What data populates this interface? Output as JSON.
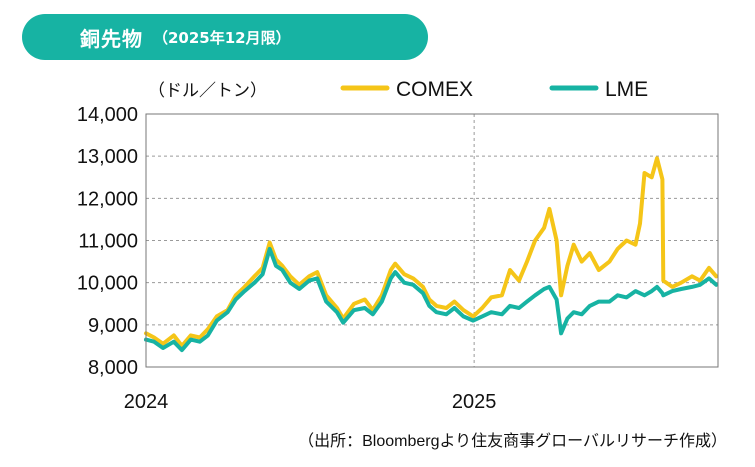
{
  "header": {
    "title": "銅先物",
    "subtitle": "（2025年12月限）"
  },
  "source_note": "（出所：Bloombergより住友商事グローバルリサーチ作成）",
  "colors": {
    "title_bg": "#17b3a3",
    "comex": "#f5c518",
    "lme": "#17b3a3",
    "grid": "#9a9a9a"
  },
  "chart_data": {
    "type": "line",
    "unit_label": "（ドル／トン）",
    "ylim": [
      8000,
      14000
    ],
    "yticks": [
      8000,
      9000,
      10000,
      11000,
      12000,
      13000,
      14000
    ],
    "ytick_labels": [
      "8,000",
      "9,000",
      "10,000",
      "11,000",
      "12,000",
      "13,000",
      "14,000"
    ],
    "xlim": [
      "2024-01-01",
      "2025-09-30"
    ],
    "xticks": [
      "2024-01-01",
      "2025-01-01"
    ],
    "xtick_labels": [
      "2024",
      "2025"
    ],
    "grid": "dashed",
    "legend_position": "top-right",
    "series": [
      {
        "name": "COMEX",
        "color": "#f5c518",
        "points": [
          [
            "2024-01-01",
            8800
          ],
          [
            "2024-01-10",
            8700
          ],
          [
            "2024-01-20",
            8550
          ],
          [
            "2024-02-01",
            8750
          ],
          [
            "2024-02-10",
            8500
          ],
          [
            "2024-02-20",
            8750
          ],
          [
            "2024-03-01",
            8700
          ],
          [
            "2024-03-10",
            8900
          ],
          [
            "2024-03-20",
            9200
          ],
          [
            "2024-04-01",
            9350
          ],
          [
            "2024-04-10",
            9700
          ],
          [
            "2024-04-20",
            9900
          ],
          [
            "2024-05-01",
            10150
          ],
          [
            "2024-05-10",
            10350
          ],
          [
            "2024-05-18",
            10950
          ],
          [
            "2024-05-25",
            10550
          ],
          [
            "2024-06-01",
            10400
          ],
          [
            "2024-06-10",
            10150
          ],
          [
            "2024-06-20",
            9950
          ],
          [
            "2024-07-01",
            10150
          ],
          [
            "2024-07-10",
            10250
          ],
          [
            "2024-07-20",
            9700
          ],
          [
            "2024-08-01",
            9400
          ],
          [
            "2024-08-08",
            9150
          ],
          [
            "2024-08-20",
            9500
          ],
          [
            "2024-09-01",
            9600
          ],
          [
            "2024-09-10",
            9350
          ],
          [
            "2024-09-20",
            9700
          ],
          [
            "2024-09-30",
            10300
          ],
          [
            "2024-10-05",
            10450
          ],
          [
            "2024-10-15",
            10200
          ],
          [
            "2024-10-25",
            10100
          ],
          [
            "2024-11-05",
            9900
          ],
          [
            "2024-11-12",
            9600
          ],
          [
            "2024-11-20",
            9450
          ],
          [
            "2024-12-01",
            9400
          ],
          [
            "2024-12-10",
            9550
          ],
          [
            "2024-12-20",
            9350
          ],
          [
            "2024-12-31",
            9200
          ],
          [
            "2025-01-10",
            9400
          ],
          [
            "2025-01-20",
            9650
          ],
          [
            "2025-02-01",
            9700
          ],
          [
            "2025-02-10",
            10300
          ],
          [
            "2025-02-20",
            10050
          ],
          [
            "2025-03-01",
            10500
          ],
          [
            "2025-03-10",
            11000
          ],
          [
            "2025-03-20",
            11300
          ],
          [
            "2025-03-26",
            11750
          ],
          [
            "2025-04-03",
            11000
          ],
          [
            "2025-04-08",
            9700
          ],
          [
            "2025-04-15",
            10400
          ],
          [
            "2025-04-22",
            10900
          ],
          [
            "2025-05-01",
            10500
          ],
          [
            "2025-05-10",
            10700
          ],
          [
            "2025-05-20",
            10300
          ],
          [
            "2025-06-01",
            10500
          ],
          [
            "2025-06-10",
            10800
          ],
          [
            "2025-06-20",
            11000
          ],
          [
            "2025-06-30",
            10900
          ],
          [
            "2025-07-05",
            11400
          ],
          [
            "2025-07-10",
            12600
          ],
          [
            "2025-07-18",
            12500
          ],
          [
            "2025-07-24",
            12950
          ],
          [
            "2025-07-30",
            12450
          ],
          [
            "2025-07-31",
            10050
          ],
          [
            "2025-08-10",
            9900
          ],
          [
            "2025-08-20",
            10000
          ],
          [
            "2025-09-01",
            10150
          ],
          [
            "2025-09-10",
            10050
          ],
          [
            "2025-09-20",
            10350
          ],
          [
            "2025-09-28",
            10150
          ]
        ]
      },
      {
        "name": "LME",
        "color": "#17b3a3",
        "points": [
          [
            "2024-01-01",
            8650
          ],
          [
            "2024-01-10",
            8600
          ],
          [
            "2024-01-20",
            8450
          ],
          [
            "2024-02-01",
            8600
          ],
          [
            "2024-02-10",
            8400
          ],
          [
            "2024-02-20",
            8650
          ],
          [
            "2024-03-01",
            8600
          ],
          [
            "2024-03-10",
            8750
          ],
          [
            "2024-03-20",
            9100
          ],
          [
            "2024-04-01",
            9300
          ],
          [
            "2024-04-10",
            9600
          ],
          [
            "2024-04-20",
            9800
          ],
          [
            "2024-05-01",
            10000
          ],
          [
            "2024-05-10",
            10200
          ],
          [
            "2024-05-18",
            10800
          ],
          [
            "2024-05-25",
            10400
          ],
          [
            "2024-06-01",
            10300
          ],
          [
            "2024-06-10",
            10000
          ],
          [
            "2024-06-20",
            9850
          ],
          [
            "2024-07-01",
            10050
          ],
          [
            "2024-07-10",
            10100
          ],
          [
            "2024-07-20",
            9550
          ],
          [
            "2024-08-01",
            9300
          ],
          [
            "2024-08-08",
            9050
          ],
          [
            "2024-08-20",
            9350
          ],
          [
            "2024-09-01",
            9400
          ],
          [
            "2024-09-10",
            9250
          ],
          [
            "2024-09-20",
            9550
          ],
          [
            "2024-09-30",
            10100
          ],
          [
            "2024-10-05",
            10250
          ],
          [
            "2024-10-15",
            10000
          ],
          [
            "2024-10-25",
            9950
          ],
          [
            "2024-11-05",
            9750
          ],
          [
            "2024-11-12",
            9450
          ],
          [
            "2024-11-20",
            9300
          ],
          [
            "2024-12-01",
            9250
          ],
          [
            "2024-12-10",
            9400
          ],
          [
            "2024-12-20",
            9200
          ],
          [
            "2024-12-31",
            9100
          ],
          [
            "2025-01-10",
            9200
          ],
          [
            "2025-01-20",
            9300
          ],
          [
            "2025-02-01",
            9250
          ],
          [
            "2025-02-10",
            9450
          ],
          [
            "2025-02-20",
            9400
          ],
          [
            "2025-03-01",
            9550
          ],
          [
            "2025-03-10",
            9700
          ],
          [
            "2025-03-20",
            9850
          ],
          [
            "2025-03-26",
            9900
          ],
          [
            "2025-04-03",
            9600
          ],
          [
            "2025-04-08",
            8800
          ],
          [
            "2025-04-15",
            9150
          ],
          [
            "2025-04-22",
            9300
          ],
          [
            "2025-05-01",
            9250
          ],
          [
            "2025-05-10",
            9450
          ],
          [
            "2025-05-20",
            9550
          ],
          [
            "2025-06-01",
            9550
          ],
          [
            "2025-06-10",
            9700
          ],
          [
            "2025-06-20",
            9650
          ],
          [
            "2025-06-30",
            9800
          ],
          [
            "2025-07-05",
            9750
          ],
          [
            "2025-07-10",
            9700
          ],
          [
            "2025-07-18",
            9800
          ],
          [
            "2025-07-24",
            9900
          ],
          [
            "2025-07-30",
            9750
          ],
          [
            "2025-07-31",
            9700
          ],
          [
            "2025-08-10",
            9800
          ],
          [
            "2025-08-20",
            9850
          ],
          [
            "2025-09-01",
            9900
          ],
          [
            "2025-09-10",
            9950
          ],
          [
            "2025-09-20",
            10100
          ],
          [
            "2025-09-28",
            9950
          ]
        ]
      }
    ]
  }
}
